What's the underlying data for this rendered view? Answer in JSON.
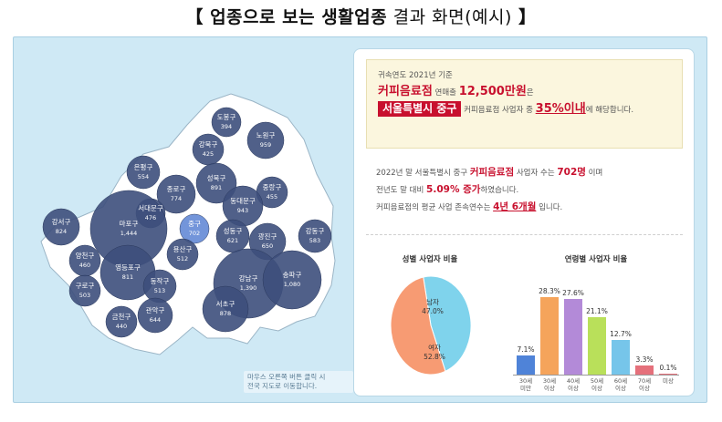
{
  "page": {
    "title_bracket_open": "【",
    "title_bold": "업종으로 보는 생활업종",
    "title_rest": " 결과 화면(예시)",
    "title_bracket_close": "】"
  },
  "map": {
    "hint_line1": "마우스 오른쪽 버튼 클릭 시",
    "hint_line2": "전국 지도로 이동합니다.",
    "bubble_color": "#3d4f7c",
    "highlight_color": "#6c8fd8",
    "districts": [
      {
        "name": "도봉구",
        "value": "394"
      },
      {
        "name": "노원구",
        "value": "959"
      },
      {
        "name": "강북구",
        "value": "425"
      },
      {
        "name": "은평구",
        "value": "554"
      },
      {
        "name": "성북구",
        "value": "891"
      },
      {
        "name": "중랑구",
        "value": "455"
      },
      {
        "name": "종로구",
        "value": "774"
      },
      {
        "name": "동대문구",
        "value": "943"
      },
      {
        "name": "서대문구",
        "value": "476"
      },
      {
        "name": "강서구",
        "value": "824"
      },
      {
        "name": "마포구",
        "value": "1,444"
      },
      {
        "name": "중구",
        "value": "702"
      },
      {
        "name": "성동구",
        "value": "621"
      },
      {
        "name": "광진구",
        "value": "650"
      },
      {
        "name": "강동구",
        "value": "583"
      },
      {
        "name": "용산구",
        "value": "512"
      },
      {
        "name": "양천구",
        "value": "460"
      },
      {
        "name": "영등포구",
        "value": "811"
      },
      {
        "name": "동작구",
        "value": "513"
      },
      {
        "name": "강남구",
        "value": "1,390"
      },
      {
        "name": "송파구",
        "value": "1,080"
      },
      {
        "name": "구로구",
        "value": "503"
      },
      {
        "name": "서초구",
        "value": "878"
      },
      {
        "name": "금천구",
        "value": "440"
      },
      {
        "name": "관악구",
        "value": "644"
      }
    ]
  },
  "summary": {
    "base_year": "귀속연도 2021년 기준",
    "industry": "커피음료점",
    "revenue_prefix": "연매출",
    "revenue": "12,500만원",
    "revenue_suffix": "은",
    "region": "서울특별시 중구",
    "rank_prefix": "커피음료점 사업자 중",
    "rank": "35%이내",
    "rank_suffix": "에 해당합니다."
  },
  "stats": {
    "line1_prefix": "2022년 말 서울특별시 중구",
    "line1_industry": "커피음료점",
    "line1_mid": "사업자 수는",
    "line1_count": "702명",
    "line1_suffix": "이며",
    "line2_prefix": "전년도 말 대비",
    "line2_change": "5.09% 증가",
    "line2_suffix": "하였습니다.",
    "line3_prefix": "커피음료점의 평균 사업 존속연수는",
    "line3_duration": "4년 6개월",
    "line3_suffix": "입니다."
  },
  "gender_chart": {
    "title": "성별 사업자 비율",
    "male_label": "남자",
    "male_pct": "47.0%",
    "female_label": "여자",
    "female_pct": "52.8%"
  },
  "chart_data": [
    {
      "type": "pie",
      "title": "성별 사업자 비율",
      "labels": [
        "남자",
        "여자"
      ],
      "values": [
        47.0,
        52.8
      ],
      "colors": [
        "#7fd3ec",
        "#f79b73"
      ]
    },
    {
      "type": "bar",
      "title": "연령별 사업자 비율",
      "categories": [
        "30세 미만",
        "30세 이상",
        "40세 이상",
        "50세 이상",
        "60세 이상",
        "70세 이상",
        "미상"
      ],
      "values": [
        7.1,
        28.3,
        27.6,
        21.1,
        12.7,
        3.3,
        0.1
      ],
      "labels": [
        "7.1%",
        "28.3%",
        "27.6%",
        "21.1%",
        "12.7%",
        "3.3%",
        "0.1%"
      ],
      "colors": [
        "#4f83d8",
        "#f5a45b",
        "#b38ad8",
        "#b9e05a",
        "#76c5ea",
        "#e5707b",
        "#e5707b"
      ]
    }
  ],
  "age_chart": {
    "title": "연령별 사업자 비율",
    "cat_lines": [
      [
        "30세",
        "미만"
      ],
      [
        "30세",
        "이상"
      ],
      [
        "40세",
        "이상"
      ],
      [
        "50세",
        "이상"
      ],
      [
        "60세",
        "이상"
      ],
      [
        "70세",
        "이상"
      ],
      [
        "미상",
        ""
      ]
    ]
  }
}
